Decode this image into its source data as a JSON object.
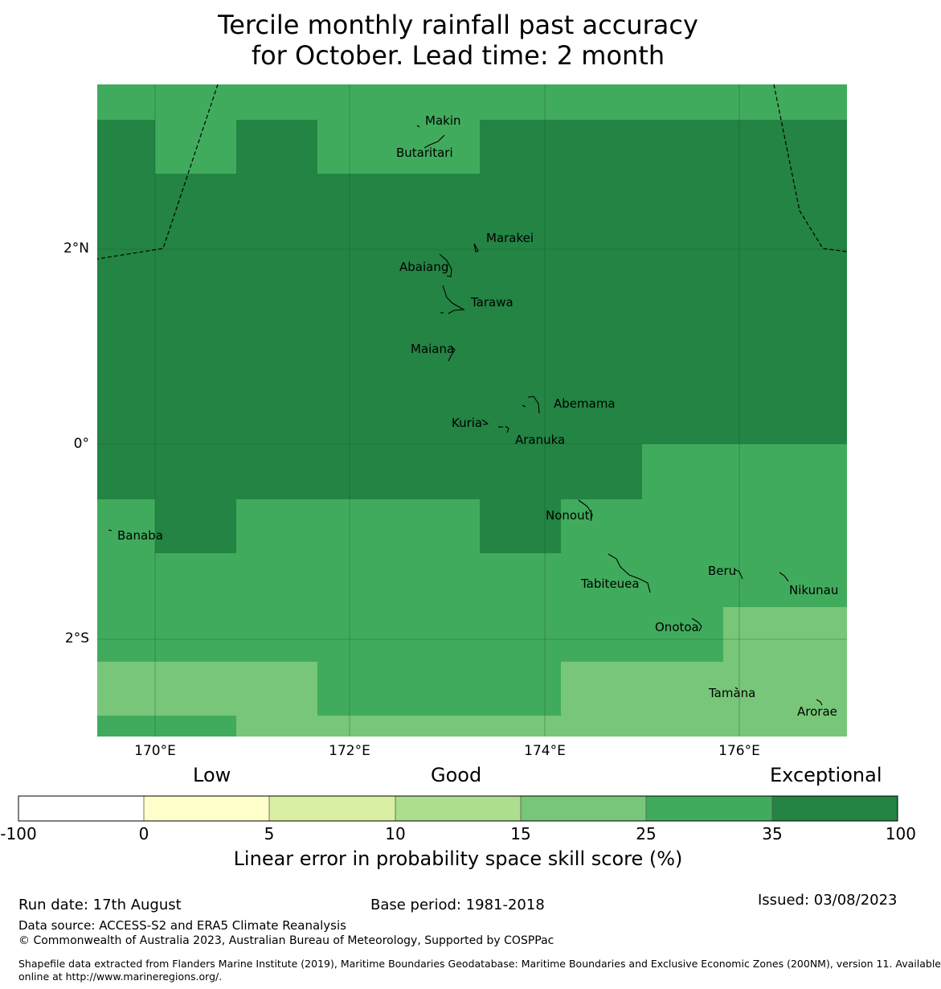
{
  "title": {
    "line1": "Tercile monthly rainfall past accuracy",
    "line2": "for October. Lead time: 2 month"
  },
  "map": {
    "lon_range": [
      169.4,
      177.1
    ],
    "lat_range": [
      -3.2,
      3.65
    ],
    "colors": {
      "exceptional": "#238443",
      "band_25_35": "#41ab5d",
      "band_15_25": "#78c679"
    },
    "lat_labels": [
      "2°N",
      "0°",
      "2°S"
    ],
    "lon_labels": [
      "170°E",
      "172°E",
      "174°E",
      "176°E"
    ],
    "islands": [
      "Makin",
      "Butaritari",
      "Marakei",
      "Abaiang",
      "Tarawa",
      "Maiana",
      "Abemama",
      "Kuria",
      "Aranuka",
      "Nonouti",
      "Banaba",
      "Tabiteuea",
      "Beru",
      "Nikunau",
      "Onotoa",
      "Tamana",
      "Arorae"
    ]
  },
  "colorbar": {
    "categories": [
      "Low",
      "Good",
      "Exceptional"
    ],
    "ticks": [
      "-100",
      "0",
      "5",
      "10",
      "15",
      "25",
      "35",
      "100"
    ],
    "colors": [
      "#ffffff",
      "#ffffcc",
      "#d9f0a3",
      "#addd8e",
      "#78c679",
      "#41ab5d",
      "#238443"
    ],
    "title": "Linear error in probability space skill score (%)"
  },
  "footer": {
    "run_date": "Run date: 17th August",
    "base_period": "Base period: 1981-2018",
    "issued": "Issued: 03/08/2023",
    "data_source": "Data source: ACCESS-S2 and ERA5 Climate Reanalysis",
    "copyright": "© Commonwealth of Australia 2023, Australian Bureau of Meteorology, Supported by COSPPac",
    "shapefile_line1": "Shapefile data extracted from Flanders Marine Institute (2019), Maritime Boundaries Geodatabase: Maritime Boundaries and Exclusive Economic Zones (200NM), version 11. Available",
    "shapefile_line2": "online at http://www.marineregions.org/."
  }
}
